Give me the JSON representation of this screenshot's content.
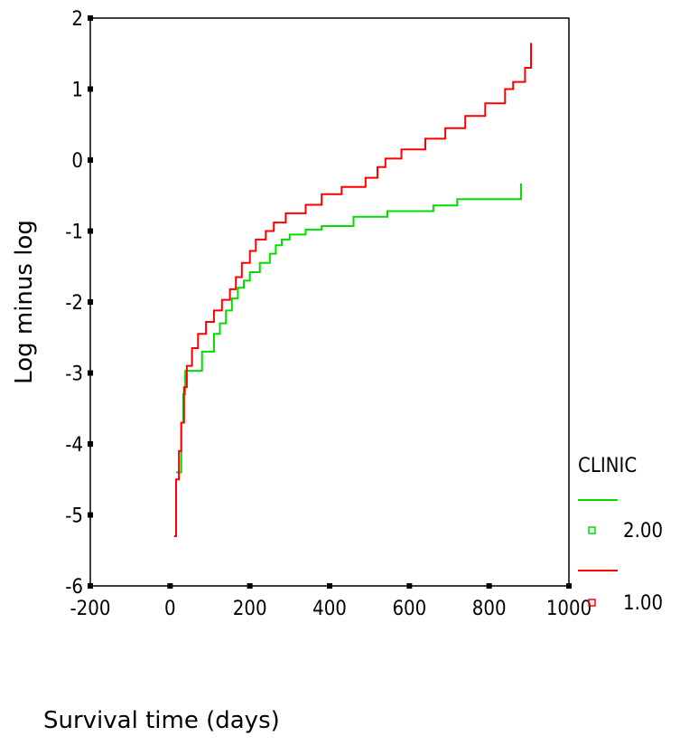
{
  "chart_data": {
    "type": "line",
    "xlabel": "Survival time (days)",
    "ylabel": "Log minus log",
    "xlim": [
      -200,
      1000
    ],
    "ylim": [
      -6,
      2
    ],
    "x_ticks": [
      -200,
      0,
      200,
      400,
      600,
      800,
      1000
    ],
    "y_ticks": [
      -6,
      -5,
      -4,
      -3,
      -2,
      -1,
      0,
      1,
      2
    ],
    "x_tick_labels": [
      "-200",
      "0",
      "200",
      "400",
      "600",
      "800",
      "1000"
    ],
    "y_tick_labels": [
      "-6",
      "-5",
      "-4",
      "-3",
      "-2",
      "-1",
      "0",
      "1",
      "2"
    ],
    "grid": false,
    "legend": {
      "title": "CLINIC",
      "placement": "right",
      "entries": [
        "2.00",
        "1.00"
      ]
    },
    "series": [
      {
        "name": "2.00",
        "color": "#00dd00",
        "step": true,
        "points": [
          [
            15,
            -4.4
          ],
          [
            28,
            -4.4
          ],
          [
            28,
            -3.7
          ],
          [
            33,
            -3.7
          ],
          [
            33,
            -3.3
          ],
          [
            38,
            -3.3
          ],
          [
            38,
            -2.97
          ],
          [
            80,
            -2.97
          ],
          [
            80,
            -2.7
          ],
          [
            110,
            -2.7
          ],
          [
            110,
            -2.45
          ],
          [
            125,
            -2.45
          ],
          [
            125,
            -2.3
          ],
          [
            140,
            -2.3
          ],
          [
            140,
            -2.12
          ],
          [
            155,
            -2.12
          ],
          [
            155,
            -1.95
          ],
          [
            170,
            -1.95
          ],
          [
            170,
            -1.8
          ],
          [
            185,
            -1.8
          ],
          [
            185,
            -1.7
          ],
          [
            200,
            -1.7
          ],
          [
            200,
            -1.58
          ],
          [
            225,
            -1.58
          ],
          [
            225,
            -1.45
          ],
          [
            250,
            -1.45
          ],
          [
            250,
            -1.32
          ],
          [
            265,
            -1.32
          ],
          [
            265,
            -1.2
          ],
          [
            280,
            -1.2
          ],
          [
            280,
            -1.12
          ],
          [
            300,
            -1.12
          ],
          [
            300,
            -1.05
          ],
          [
            340,
            -1.05
          ],
          [
            340,
            -0.98
          ],
          [
            380,
            -0.98
          ],
          [
            380,
            -0.93
          ],
          [
            460,
            -0.93
          ],
          [
            460,
            -0.8
          ],
          [
            545,
            -0.8
          ],
          [
            545,
            -0.72
          ],
          [
            660,
            -0.72
          ],
          [
            660,
            -0.64
          ],
          [
            720,
            -0.64
          ],
          [
            720,
            -0.55
          ],
          [
            880,
            -0.55
          ],
          [
            880,
            -0.33
          ]
        ]
      },
      {
        "name": "1.00",
        "color": "#ff0000",
        "step": true,
        "points": [
          [
            10,
            -5.3
          ],
          [
            15,
            -5.3
          ],
          [
            15,
            -4.5
          ],
          [
            22,
            -4.5
          ],
          [
            22,
            -4.1
          ],
          [
            28,
            -4.1
          ],
          [
            28,
            -3.7
          ],
          [
            35,
            -3.7
          ],
          [
            35,
            -3.2
          ],
          [
            42,
            -3.2
          ],
          [
            42,
            -2.9
          ],
          [
            55,
            -2.9
          ],
          [
            55,
            -2.65
          ],
          [
            70,
            -2.65
          ],
          [
            70,
            -2.45
          ],
          [
            90,
            -2.45
          ],
          [
            90,
            -2.28
          ],
          [
            110,
            -2.28
          ],
          [
            110,
            -2.12
          ],
          [
            130,
            -2.12
          ],
          [
            130,
            -1.97
          ],
          [
            150,
            -1.97
          ],
          [
            150,
            -1.82
          ],
          [
            165,
            -1.82
          ],
          [
            165,
            -1.65
          ],
          [
            180,
            -1.65
          ],
          [
            180,
            -1.45
          ],
          [
            200,
            -1.45
          ],
          [
            200,
            -1.28
          ],
          [
            215,
            -1.28
          ],
          [
            215,
            -1.12
          ],
          [
            240,
            -1.12
          ],
          [
            240,
            -1.0
          ],
          [
            260,
            -1.0
          ],
          [
            260,
            -0.88
          ],
          [
            290,
            -0.88
          ],
          [
            290,
            -0.75
          ],
          [
            340,
            -0.75
          ],
          [
            340,
            -0.63
          ],
          [
            380,
            -0.63
          ],
          [
            380,
            -0.48
          ],
          [
            430,
            -0.48
          ],
          [
            430,
            -0.38
          ],
          [
            490,
            -0.38
          ],
          [
            490,
            -0.25
          ],
          [
            520,
            -0.25
          ],
          [
            520,
            -0.1
          ],
          [
            540,
            -0.1
          ],
          [
            540,
            0.02
          ],
          [
            580,
            0.02
          ],
          [
            580,
            0.15
          ],
          [
            640,
            0.15
          ],
          [
            640,
            0.3
          ],
          [
            690,
            0.3
          ],
          [
            690,
            0.45
          ],
          [
            740,
            0.45
          ],
          [
            740,
            0.62
          ],
          [
            790,
            0.62
          ],
          [
            790,
            0.8
          ],
          [
            840,
            0.8
          ],
          [
            840,
            1.0
          ],
          [
            860,
            1.0
          ],
          [
            860,
            1.1
          ],
          [
            890,
            1.1
          ],
          [
            890,
            1.3
          ],
          [
            905,
            1.3
          ],
          [
            905,
            1.65
          ]
        ]
      }
    ]
  }
}
